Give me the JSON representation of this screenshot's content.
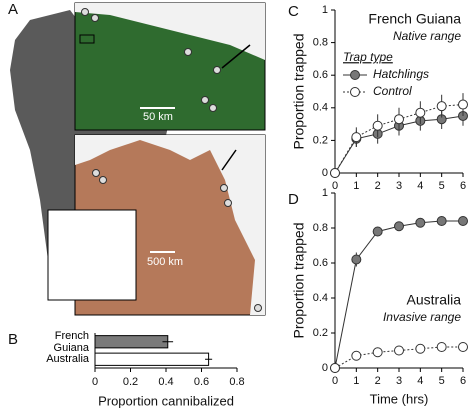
{
  "panel_labels": [
    "A",
    "B",
    "C",
    "D"
  ],
  "map": {
    "scale_labels": [
      "50 km",
      "500 km"
    ]
  },
  "chart_data": [
    {
      "type": "bar",
      "orientation": "horizontal",
      "xlabel": "Proportion cannibalized",
      "categories": [
        "French Guiana",
        "Australia"
      ],
      "values": [
        0.41,
        0.64
      ],
      "errors": [
        0.03,
        0.02
      ],
      "colors": [
        "#7a7a7a",
        "#ffffff"
      ],
      "xlim": [
        0,
        0.8
      ],
      "xticks": [
        0,
        0.2,
        0.4,
        0.6,
        0.8
      ]
    },
    {
      "type": "line",
      "title": "French Guiana",
      "subtitle": "Native range",
      "ylabel": "Proportion trapped",
      "x": [
        0,
        1,
        2,
        3,
        4,
        5,
        6
      ],
      "xlim": [
        0,
        6
      ],
      "xticks": [
        0,
        1,
        2,
        3,
        4,
        5,
        6
      ],
      "ylim": [
        0,
        1
      ],
      "yticks": [
        0,
        0.2,
        0.4,
        0.6,
        0.8,
        1
      ],
      "legend": "center left",
      "legend_title": "Trap type",
      "series": [
        {
          "name": "Hatchlings",
          "color": "#777777",
          "line_style": "solid",
          "values": [
            0,
            0.21,
            0.24,
            0.29,
            0.32,
            0.33,
            0.35
          ],
          "errors": [
            0,
            0.05,
            0.06,
            0.06,
            0.06,
            0.06,
            0.06
          ]
        },
        {
          "name": "Control",
          "color": "#ffffff",
          "line_style": "dotted",
          "values": [
            0,
            0.22,
            0.29,
            0.33,
            0.37,
            0.41,
            0.42
          ],
          "errors": [
            0,
            0.06,
            0.07,
            0.07,
            0.07,
            0.07,
            0.07
          ]
        }
      ]
    },
    {
      "type": "line",
      "title": "Australia",
      "subtitle": "Invasive range",
      "ylabel": "Proportion trapped",
      "xlabel": "Time (hrs)",
      "x": [
        0,
        1,
        2,
        3,
        4,
        5,
        6
      ],
      "xlim": [
        0,
        6
      ],
      "xticks": [
        0,
        1,
        2,
        3,
        4,
        5,
        6
      ],
      "ylim": [
        0,
        1
      ],
      "yticks": [
        0,
        0.2,
        0.4,
        0.6,
        0.8,
        1
      ],
      "series": [
        {
          "color": "#777777",
          "line_style": "solid",
          "values": [
            0,
            0.62,
            0.78,
            0.81,
            0.83,
            0.84,
            0.84
          ],
          "errors": [
            0,
            0.04,
            0.02,
            0.02,
            0.02,
            0.02,
            0.02
          ]
        },
        {
          "color": "#ffffff",
          "line_style": "dotted",
          "values": [
            0,
            0.07,
            0.09,
            0.1,
            0.11,
            0.12,
            0.12
          ],
          "errors": [
            0,
            0.01,
            0.01,
            0.01,
            0.01,
            0.01,
            0.01
          ]
        }
      ]
    }
  ]
}
